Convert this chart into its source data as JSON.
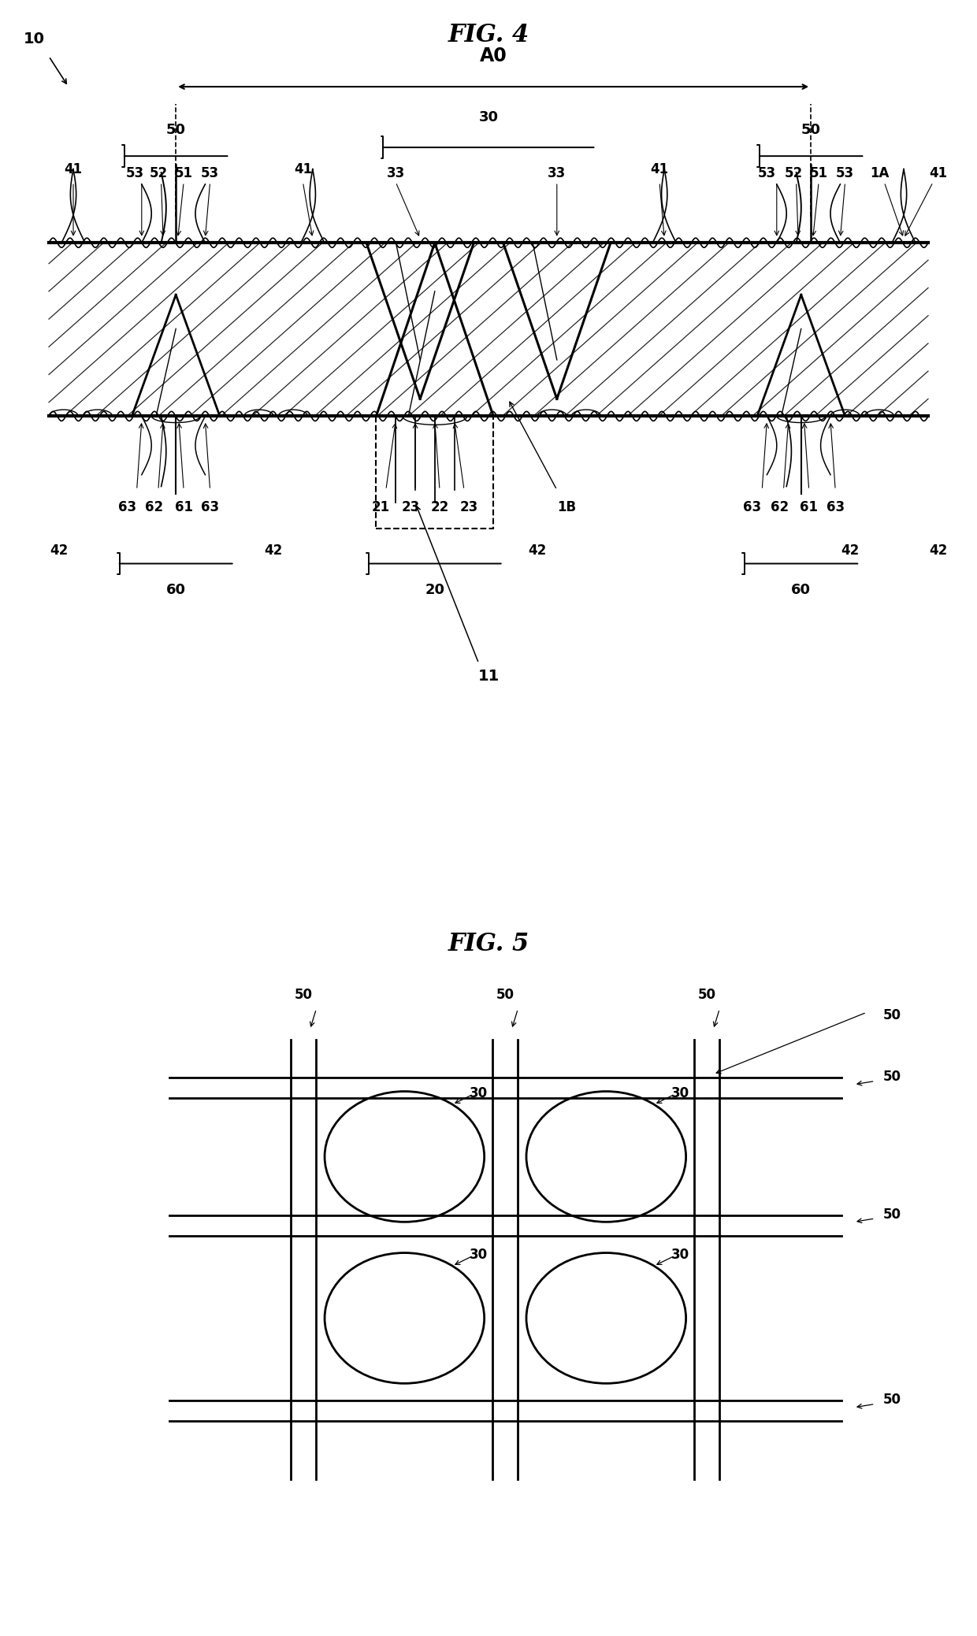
{
  "bg_color": "#ffffff",
  "lc": "#000000",
  "fig4_title": "FIG. 4",
  "fig5_title": "FIG. 5"
}
